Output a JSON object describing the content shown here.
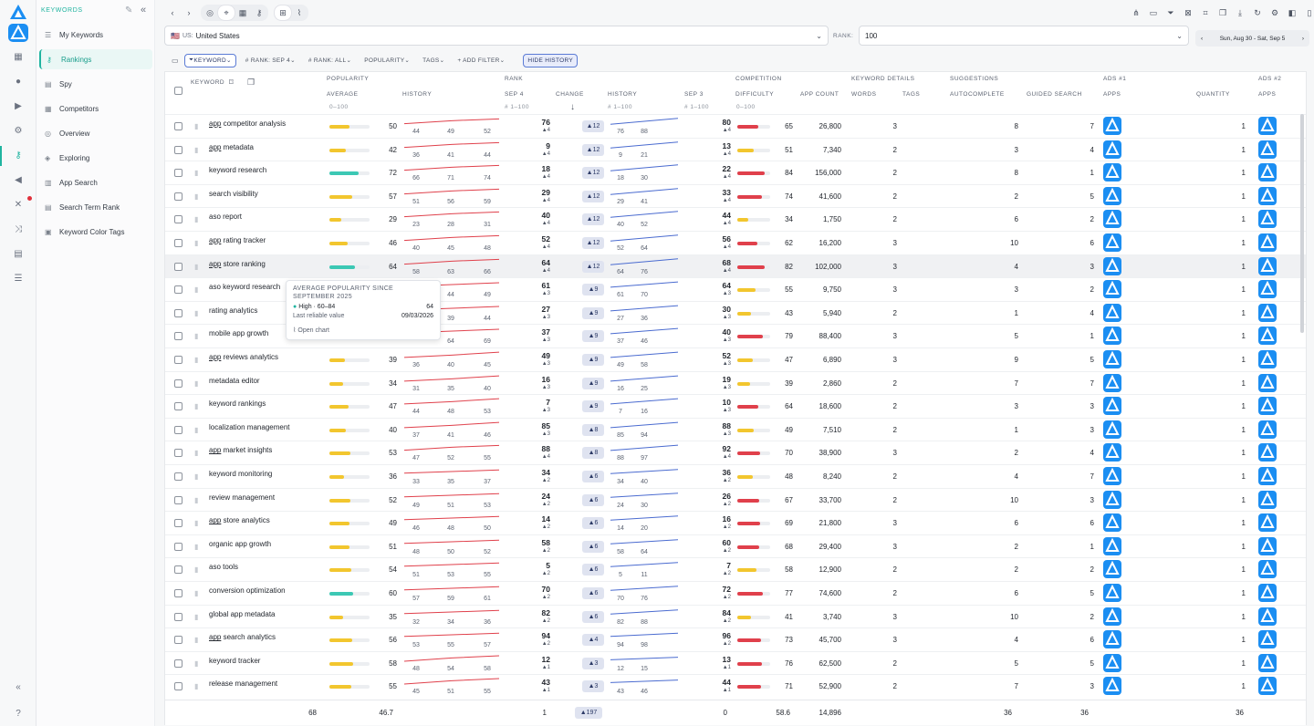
{
  "nav": {
    "section": "KEYWORDS",
    "items": [
      {
        "label": "My Keywords",
        "icon": "list-icon",
        "selected": false
      },
      {
        "label": "Rankings",
        "icon": "key-icon",
        "selected": true
      },
      {
        "label": "Spy",
        "icon": "doc-icon",
        "selected": false
      },
      {
        "label": "Competitors",
        "icon": "grid-icon",
        "selected": false
      },
      {
        "label": "Overview",
        "icon": "target-icon",
        "selected": false
      },
      {
        "label": "Exploring",
        "icon": "compass-icon",
        "selected": false
      },
      {
        "label": "App Search",
        "icon": "chart-icon",
        "selected": false
      },
      {
        "label": "Search Term Rank",
        "icon": "doc-icon",
        "selected": false
      },
      {
        "label": "Keyword Color Tags",
        "icon": "tag-icon",
        "selected": false
      }
    ]
  },
  "filters": {
    "country_flag": "🇺🇸",
    "country_prefix": "US:",
    "country": "United States",
    "rank_label": "RANK:",
    "rank_value": "100",
    "date_range": "Sun, Aug 30 - Sat, Sep 5",
    "chips": [
      "KEYWORD",
      "# RANK: SEP 4",
      "# RANK: ALL",
      "POPULARITY",
      "TAGS",
      "+ ADD FILTER"
    ],
    "hide_history": "HIDE HISTORY"
  },
  "headers": {
    "keyword": "KEYWORD",
    "popularity": "POPULARITY",
    "average": "AVERAGE",
    "history": "HISTORY",
    "rank": "RANK",
    "sep4": "SEP 4",
    "change": "CHANGE",
    "history2": "HISTORY",
    "sep3": "SEP 3",
    "competition": "COMPETITION",
    "difficulty": "DIFFICULTY",
    "app_count": "APP COUNT",
    "kw_details": "KEYWORD DETAILS",
    "words": "WORDS",
    "tags": "TAGS",
    "suggestions": "SUGGESTIONS",
    "autocomplete": "AUTOCOMPLETE",
    "guided": "GUIDED SEARCH",
    "ads1": "ADS #1",
    "apps": "APPS",
    "quantity": "QUANTITY",
    "ads2": "ADS #2",
    "apps2": "APPS",
    "range_pop": "0–100",
    "range_rank": "# 1–100",
    "range_hist": "# 1–100",
    "range_sep3": "# 1–100",
    "range_diff": "0–100"
  },
  "rows": [
    {
      "kw": "competitor analysis",
      "u": "app",
      "pop": 50,
      "h": [
        44,
        49,
        52
      ],
      "rank": 76,
      "rd": 4,
      "chg": 12,
      "rh": [
        76,
        88
      ],
      "sep3": 80,
      "sd": 4,
      "diff": 65,
      "count": "26,800",
      "words": 3,
      "auto": 8,
      "guided": 7,
      "qty": 1
    },
    {
      "kw": "metadata",
      "u": "app",
      "pop": 42,
      "h": [
        36,
        41,
        44
      ],
      "rank": 9,
      "rd": 4,
      "chg": 12,
      "rh": [
        9,
        21
      ],
      "sep3": 13,
      "sd": 4,
      "diff": 51,
      "count": "7,340",
      "words": 2,
      "auto": 3,
      "guided": 4,
      "qty": 1
    },
    {
      "kw": "keyword research",
      "u": "",
      "pop": 72,
      "h": [
        66,
        71,
        74
      ],
      "rank": 18,
      "rd": 4,
      "chg": 12,
      "rh": [
        18,
        30
      ],
      "sep3": 22,
      "sd": 4,
      "diff": 84,
      "count": "156,000",
      "words": 2,
      "auto": 8,
      "guided": 1,
      "qty": 1
    },
    {
      "kw": "search visibility",
      "u": "",
      "pop": 57,
      "h": [
        51,
        56,
        59
      ],
      "rank": 29,
      "rd": 4,
      "chg": 12,
      "rh": [
        29,
        41
      ],
      "sep3": 33,
      "sd": 4,
      "diff": 74,
      "count": "41,600",
      "words": 2,
      "auto": 2,
      "guided": 5,
      "qty": 1
    },
    {
      "kw": "aso report",
      "u": "",
      "pop": 29,
      "h": [
        23,
        28,
        31
      ],
      "rank": 40,
      "rd": 4,
      "chg": 12,
      "rh": [
        40,
        52
      ],
      "sep3": 44,
      "sd": 4,
      "diff": 34,
      "count": "1,750",
      "words": 2,
      "auto": 6,
      "guided": 2,
      "qty": 1
    },
    {
      "kw": "rating tracker",
      "u": "app",
      "pop": 46,
      "h": [
        40,
        45,
        48
      ],
      "rank": 52,
      "rd": 4,
      "chg": 12,
      "rh": [
        52,
        64
      ],
      "sep3": 56,
      "sd": 4,
      "diff": 62,
      "count": "16,200",
      "words": 3,
      "auto": 10,
      "guided": 6,
      "qty": 1
    },
    {
      "kw": "store ranking",
      "u": "app",
      "pop": 64,
      "h": [
        58,
        63,
        66
      ],
      "rank": 64,
      "rd": 4,
      "chg": 12,
      "rh": [
        64,
        76
      ],
      "sep3": 68,
      "sd": 4,
      "diff": 82,
      "count": "102,000",
      "words": 3,
      "auto": 4,
      "guided": 3,
      "qty": 1
    },
    {
      "kw": "aso keyword research",
      "u": "",
      "pop": 49,
      "h": [
        44,
        49
      ],
      "rank": 61,
      "rd": 3,
      "chg": 9,
      "rh": [
        61,
        70
      ],
      "sep3": 64,
      "sd": 3,
      "diff": 55,
      "count": "9,750",
      "words": 3,
      "auto": 3,
      "guided": 2,
      "qty": 1
    },
    {
      "kw": "rating analytics",
      "u": "",
      "pop": 39,
      "h": [
        39,
        44
      ],
      "rank": 27,
      "rd": 3,
      "chg": 9,
      "rh": [
        27,
        36
      ],
      "sep3": 30,
      "sd": 3,
      "diff": 43,
      "count": "5,940",
      "words": 2,
      "auto": 1,
      "guided": 4,
      "qty": 1
    },
    {
      "kw": "mobile app growth",
      "u": "",
      "pop": 64,
      "h": [
        64,
        69
      ],
      "rank": 37,
      "rd": 3,
      "chg": 9,
      "rh": [
        37,
        46
      ],
      "sep3": 40,
      "sd": 3,
      "diff": 79,
      "count": "88,400",
      "words": 3,
      "auto": 5,
      "guided": 1,
      "qty": 1
    },
    {
      "kw": "reviews analytics",
      "u": "app",
      "pop": 39,
      "h": [
        36,
        40,
        45
      ],
      "rank": 49,
      "rd": 3,
      "chg": 9,
      "rh": [
        49,
        58
      ],
      "sep3": 52,
      "sd": 3,
      "diff": 47,
      "count": "6,890",
      "words": 3,
      "auto": 9,
      "guided": 5,
      "qty": 1
    },
    {
      "kw": "metadata editor",
      "u": "",
      "pop": 34,
      "h": [
        31,
        35,
        40
      ],
      "rank": 16,
      "rd": 3,
      "chg": 9,
      "rh": [
        16,
        25
      ],
      "sep3": 19,
      "sd": 3,
      "diff": 39,
      "count": "2,860",
      "words": 2,
      "auto": 7,
      "guided": 7,
      "qty": 1
    },
    {
      "kw": "keyword rankings",
      "u": "",
      "pop": 47,
      "h": [
        44,
        48,
        53
      ],
      "rank": 7,
      "rd": 3,
      "chg": 9,
      "rh": [
        7,
        16
      ],
      "sep3": 10,
      "sd": 3,
      "diff": 64,
      "count": "18,600",
      "words": 2,
      "auto": 3,
      "guided": 3,
      "qty": 1
    },
    {
      "kw": "localization management",
      "u": "",
      "pop": 40,
      "h": [
        37,
        41,
        46
      ],
      "rank": 85,
      "rd": 3,
      "chg": 8,
      "rh": [
        85,
        94
      ],
      "sep3": 88,
      "sd": 3,
      "diff": 49,
      "count": "7,510",
      "words": 2,
      "auto": 1,
      "guided": 3,
      "qty": 1
    },
    {
      "kw": "market insights",
      "u": "app",
      "pop": 53,
      "h": [
        47,
        52,
        55
      ],
      "rank": 88,
      "rd": 4,
      "chg": 8,
      "rh": [
        88,
        97
      ],
      "sep3": 92,
      "sd": 4,
      "diff": 70,
      "count": "38,900",
      "words": 3,
      "auto": 2,
      "guided": 4,
      "qty": 1
    },
    {
      "kw": "keyword monitoring",
      "u": "",
      "pop": 36,
      "h": [
        33,
        35,
        37
      ],
      "rank": 34,
      "rd": 2,
      "chg": 6,
      "rh": [
        34,
        40
      ],
      "sep3": 36,
      "sd": 2,
      "diff": 48,
      "count": "8,240",
      "words": 2,
      "auto": 4,
      "guided": 7,
      "qty": 1
    },
    {
      "kw": "review management",
      "u": "",
      "pop": 52,
      "h": [
        49,
        51,
        53
      ],
      "rank": 24,
      "rd": 2,
      "chg": 6,
      "rh": [
        24,
        30
      ],
      "sep3": 26,
      "sd": 2,
      "diff": 67,
      "count": "33,700",
      "words": 2,
      "auto": 10,
      "guided": 3,
      "qty": 1
    },
    {
      "kw": "store analytics",
      "u": "app",
      "pop": 49,
      "h": [
        46,
        48,
        50
      ],
      "rank": 14,
      "rd": 2,
      "chg": 6,
      "rh": [
        14,
        20
      ],
      "sep3": 16,
      "sd": 2,
      "diff": 69,
      "count": "21,800",
      "words": 3,
      "auto": 6,
      "guided": 6,
      "qty": 1
    },
    {
      "kw": "organic app growth",
      "u": "",
      "pop": 51,
      "h": [
        48,
        50,
        52
      ],
      "rank": 58,
      "rd": 2,
      "chg": 6,
      "rh": [
        58,
        64
      ],
      "sep3": 60,
      "sd": 2,
      "diff": 68,
      "count": "29,400",
      "words": 3,
      "auto": 2,
      "guided": 1,
      "qty": 1
    },
    {
      "kw": "aso tools",
      "u": "",
      "pop": 54,
      "h": [
        51,
        53,
        55
      ],
      "rank": 5,
      "rd": 2,
      "chg": 6,
      "rh": [
        5,
        11
      ],
      "sep3": 7,
      "sd": 2,
      "diff": 58,
      "count": "12,900",
      "words": 2,
      "auto": 2,
      "guided": 2,
      "qty": 1
    },
    {
      "kw": "conversion optimization",
      "u": "",
      "pop": 60,
      "h": [
        57,
        59,
        61
      ],
      "rank": 70,
      "rd": 2,
      "chg": 6,
      "rh": [
        70,
        76
      ],
      "sep3": 72,
      "sd": 2,
      "diff": 77,
      "count": "74,600",
      "words": 2,
      "auto": 6,
      "guided": 5,
      "qty": 1
    },
    {
      "kw": "global app metadata",
      "u": "",
      "pop": 35,
      "h": [
        32,
        34,
        36
      ],
      "rank": 82,
      "rd": 2,
      "chg": 6,
      "rh": [
        82,
        88
      ],
      "sep3": 84,
      "sd": 2,
      "diff": 41,
      "count": "3,740",
      "words": 3,
      "auto": 10,
      "guided": 2,
      "qty": 1
    },
    {
      "kw": "search analytics",
      "u": "app",
      "pop": 56,
      "h": [
        53,
        55,
        57
      ],
      "rank": 94,
      "rd": 2,
      "chg": 4,
      "rh": [
        94,
        98
      ],
      "sep3": 96,
      "sd": 2,
      "diff": 73,
      "count": "45,700",
      "words": 3,
      "auto": 4,
      "guided": 6,
      "qty": 1
    },
    {
      "kw": "keyword tracker",
      "u": "",
      "pop": 58,
      "h": [
        48,
        54,
        58
      ],
      "rank": 12,
      "rd": 1,
      "chg": 3,
      "rh": [
        12,
        15
      ],
      "sep3": 13,
      "sd": 1,
      "diff": 76,
      "count": "62,500",
      "words": 2,
      "auto": 5,
      "guided": 5,
      "qty": 1
    },
    {
      "kw": "release management",
      "u": "",
      "pop": 55,
      "h": [
        45,
        51,
        55
      ],
      "rank": 43,
      "rd": 1,
      "chg": 3,
      "rh": [
        43,
        46
      ],
      "sep3": 44,
      "sd": 1,
      "diff": 71,
      "count": "52,900",
      "words": 2,
      "auto": 7,
      "guided": 3,
      "qty": 1
    }
  ],
  "tooltip": {
    "title": "AVERAGE POPULARITY SINCE SEPTEMBER 2025",
    "level": "High · 60–84",
    "value": "64",
    "reliable_label": "Last reliable value",
    "reliable_date": "09/03/2026",
    "open_chart": "Open chart"
  },
  "footer": {
    "keywords": "68",
    "avg": "46.7",
    "rank": "1",
    "change": "197",
    "sep3": "0",
    "diff": "58.6",
    "count": "14,896",
    "auto": "36",
    "guided": "36",
    "qty": "36"
  },
  "colors": {
    "accent": "#20b4a0",
    "brand": "#1b8ef2",
    "teal": "#3cc8b4",
    "yellow": "#f2c62e",
    "red": "#e0404b",
    "blue": "#4a6bd0"
  }
}
